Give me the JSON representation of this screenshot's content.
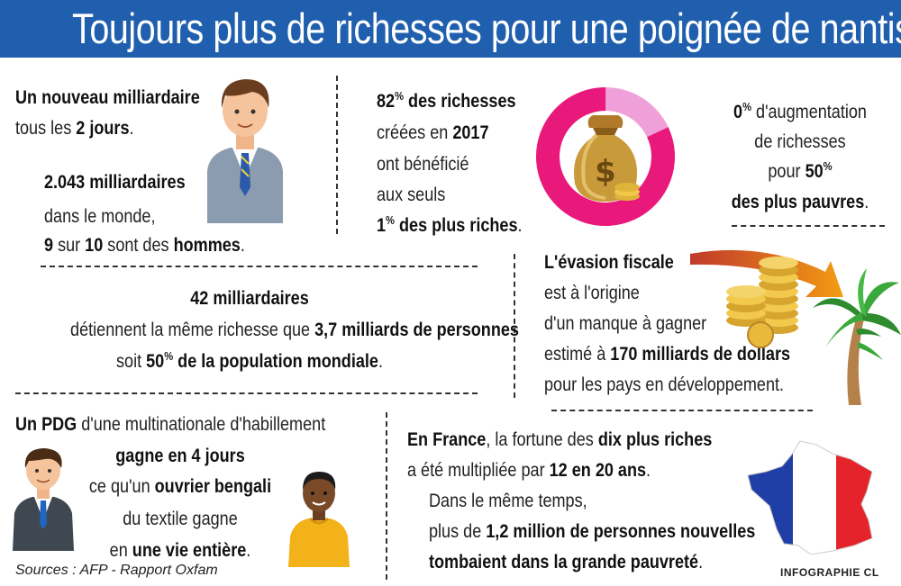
{
  "title": "Toujours plus de richesses pour une poignée de nantis",
  "block1": {
    "line1": "Un nouveau milliardaire",
    "line2_prefix": "tous les ",
    "line2_bold": "2 jours",
    "line2_suffix": ".",
    "count": "2.043 milliardaires",
    "line4": "dans le monde,",
    "l5_a": "9",
    "l5_b": " sur ",
    "l5_c": "10",
    "l5_d": " sont des ",
    "l5_e": "hommes",
    "l5_f": "."
  },
  "block2": {
    "pct": "82",
    "pct_sign": "%",
    "l1_rest": " des richesses",
    "l2_prefix": "créées en ",
    "l2_bold": "2017",
    "l3": "ont bénéficié",
    "l4": "aux seuls",
    "l5_num": "1",
    "l5_sign": "%",
    "l5_rest": " des plus riches",
    "l5_end": "."
  },
  "block3": {
    "pct": "0",
    "pct_sign": "%",
    "l1_rest": " d'augmentation",
    "l2": "de richesses",
    "l3_prefix": "pour ",
    "l3_bold": "50",
    "l3_sign": "%",
    "l4_bold": "des plus pauvres",
    "l4_end": "."
  },
  "block4": {
    "l1": "42 milliardaires",
    "l2_prefix": "détiennent la même richesse que ",
    "l2_bold": "3,7 milliards de personnes",
    "l3_prefix": "soit ",
    "l3_num": "50",
    "l3_sign": "%",
    "l3_bold": " de la population mondiale",
    "l3_end": "."
  },
  "block5": {
    "l1": "L'évasion fiscale",
    "l2": "est à l'origine",
    "l3": "d'un manque à gagner",
    "l4_prefix": "estimé à ",
    "l4_bold": "170 milliards de dollars",
    "l5": "pour les pays en développement."
  },
  "block6": {
    "l1_bold": "Un PDG",
    "l1_rest": " d'une multinationale d'habillement",
    "l2_bold": "gagne en 4 jours",
    "l3_prefix": "ce qu'un ",
    "l3_bold": "ouvrier bengali",
    "l4": "du textile gagne",
    "l5_prefix": "en ",
    "l5_bold": "une vie entière",
    "l5_end": "."
  },
  "block7": {
    "l1_bold": "En France",
    "l1_mid": ", la fortune des ",
    "l1_bold2": "dix plus riches",
    "l2_prefix": "a été multipliée par ",
    "l2_bold": "12 en 20 ans",
    "l2_end": ".",
    "l3": "Dans le même temps,",
    "l4_prefix": "plus de ",
    "l4_bold": "1,2 million de personnes nouvelles",
    "l5_bold": "tombaient dans la grande pauvreté",
    "l5_end": "."
  },
  "sources": "Sources : AFP - Rapport Oxfam",
  "credit": "INFOGRAPHIE CL",
  "donut": {
    "share_rich_percent": 82,
    "rich_color": "#e8197a",
    "rest_color": "#f0a0d8"
  },
  "colors": {
    "title_bar": "#1f5fae",
    "title_text": "#ffffff",
    "text": "#222222"
  },
  "icons": [
    "businessman-icon",
    "money-bag-icon",
    "coins-icon",
    "arrow-icon",
    "palm-tree-icon",
    "ceo-icon",
    "worker-icon",
    "france-map-icon"
  ]
}
